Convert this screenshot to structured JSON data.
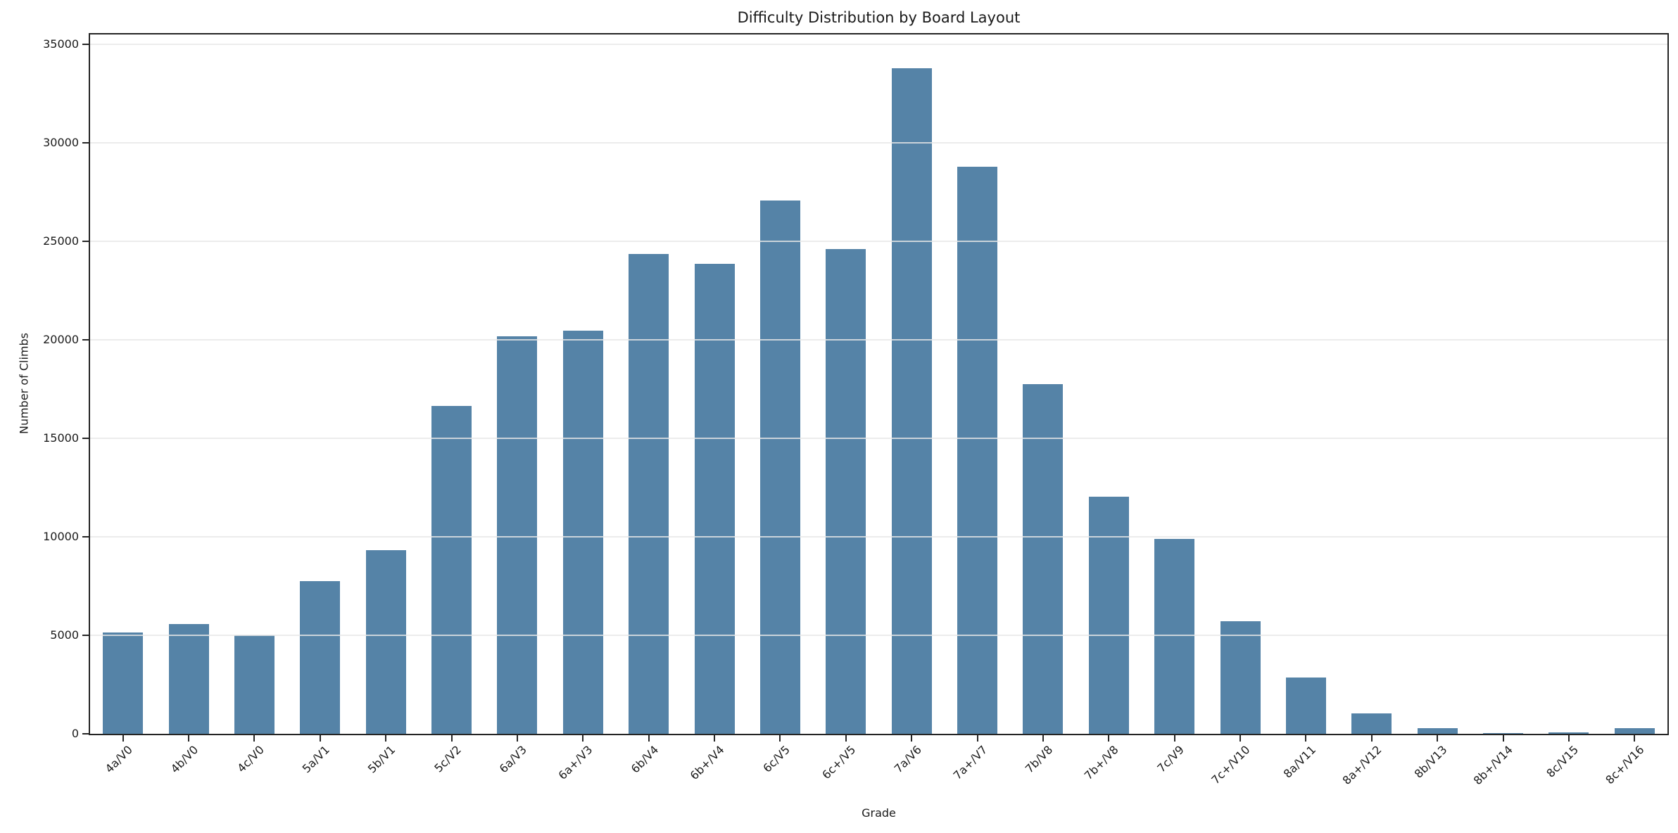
{
  "figure": {
    "title": "Difficulty Distribution by Board Layout",
    "xlabel": "Grade",
    "ylabel": "Number of Climbs"
  },
  "style": {
    "bar_color": "#5583a7",
    "grid_color": "#e7e7e7",
    "spine_color": "#242424",
    "text_color": "#1a1a1a",
    "background": "#ffffff"
  },
  "chart_data": {
    "type": "bar",
    "title": "Difficulty Distribution by Board Layout",
    "xlabel": "Grade",
    "ylabel": "Number of Climbs",
    "categories": [
      "4a/V0",
      "4b/V0",
      "4c/V0",
      "5a/V1",
      "5b/V1",
      "5c/V2",
      "6a/V3",
      "6a+/V3",
      "6b/V4",
      "6b+/V4",
      "6c/V5",
      "6c+/V5",
      "7a/V6",
      "7a+/V7",
      "7b/V8",
      "7b+/V8",
      "7c/V9",
      "7c+/V10",
      "8a/V11",
      "8a+/V12",
      "8b/V13",
      "8b+/V14",
      "8c/V15",
      "8c+/V16"
    ],
    "values": [
      5150,
      5570,
      4990,
      7760,
      9310,
      16640,
      20180,
      20460,
      24350,
      23840,
      27070,
      24620,
      33780,
      28780,
      17740,
      12050,
      9900,
      5710,
      2860,
      1020,
      280,
      50,
      70,
      270
    ],
    "y_ticks": [
      0,
      5000,
      10000,
      15000,
      20000,
      25000,
      30000,
      35000
    ],
    "ylim": [
      0,
      35500
    ],
    "grid": "horizontal",
    "legend": "none",
    "x_tick_rotation": 45
  }
}
